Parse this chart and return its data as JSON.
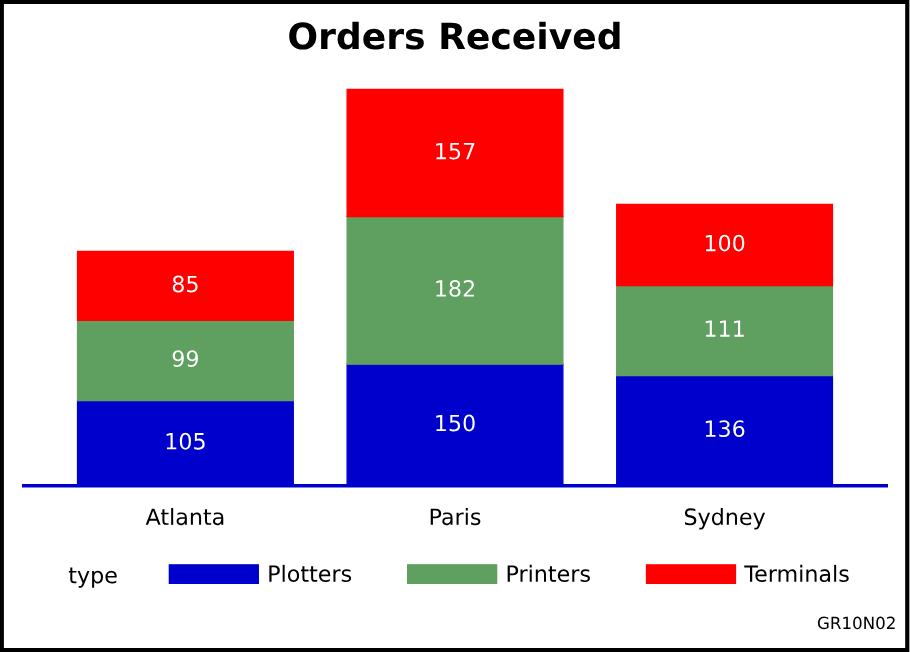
{
  "chart_data": {
    "type": "bar",
    "title": "Orders Received",
    "stacked": true,
    "data_labels": true,
    "legend": "bottom",
    "legend_title": "type",
    "categories": [
      "Atlanta",
      "Paris",
      "Sydney"
    ],
    "series": [
      {
        "name": "Plotters",
        "color": "#0000cc",
        "values": [
          105,
          150,
          136
        ]
      },
      {
        "name": "Printers",
        "color": "#5f9f5f",
        "values": [
          99,
          182,
          111
        ]
      },
      {
        "name": "Terminals",
        "color": "#ff0000",
        "values": [
          85,
          157,
          100
        ]
      }
    ],
    "annotations": [
      "GR10N02"
    ]
  }
}
